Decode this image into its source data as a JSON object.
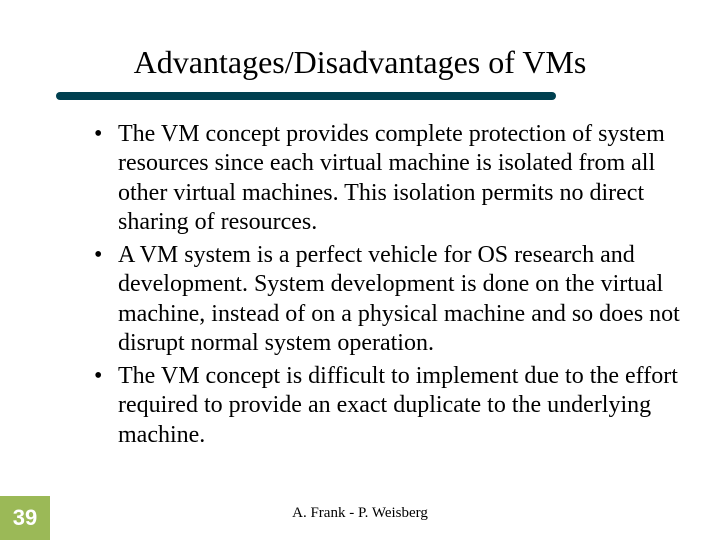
{
  "title": "Advantages/Disadvantages of VMs",
  "underline_color": "#004050",
  "bullets": [
    "The VM concept provides complete protection of system resources since each virtual machine is isolated from all other virtual machines. This isolation permits no direct sharing of resources.",
    "A VM system is a perfect vehicle for OS research and development. System development is done on the virtual machine, instead of on a physical machine and so does not disrupt normal system operation.",
    "The VM concept is difficult to implement due to the effort required to provide an exact duplicate to the underlying machine."
  ],
  "page_number": "39",
  "page_number_bg": "#9bb957",
  "footer": "A. Frank - P. Weisberg"
}
